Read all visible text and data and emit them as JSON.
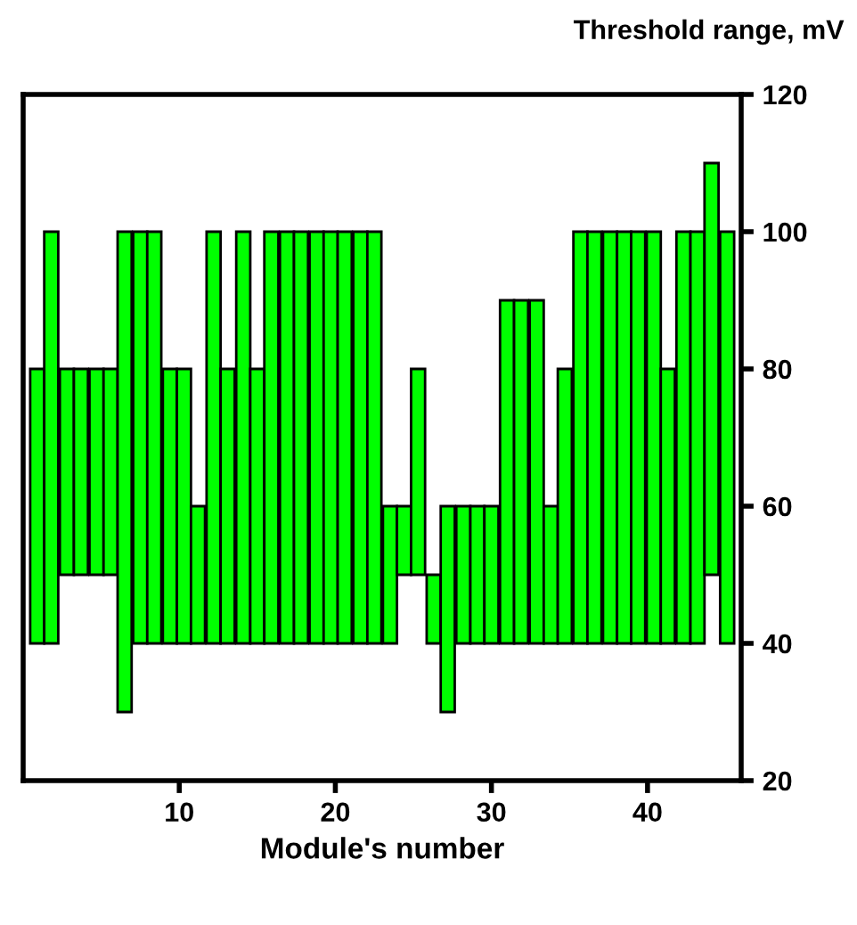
{
  "chart_data": {
    "type": "bar",
    "xlabel": "Module's number",
    "ylabel": "Threshold range, mV",
    "x": [
      0.9,
      1.8,
      2.8,
      3.7,
      4.7,
      5.6,
      6.5,
      7.5,
      8.4,
      9.4,
      10.3,
      11.2,
      12.2,
      13.1,
      14.1,
      15.0,
      15.9,
      16.9,
      17.8,
      18.8,
      19.7,
      20.6,
      21.6,
      22.5,
      23.5,
      24.4,
      25.3,
      26.3,
      27.2,
      28.2,
      29.1,
      30.0,
      31.0,
      31.9,
      32.9,
      33.8,
      34.7,
      35.7,
      36.6,
      37.6,
      38.5,
      39.4,
      40.4,
      41.3,
      42.3,
      43.2,
      44.1,
      45.1
    ],
    "base": [
      40,
      40,
      50,
      50,
      50,
      50,
      30,
      40,
      40,
      40,
      40,
      40,
      40,
      40,
      40,
      40,
      40,
      40,
      40,
      40,
      40,
      40,
      40,
      40,
      40,
      50,
      50,
      40,
      30,
      40,
      40,
      40,
      40,
      40,
      40,
      40,
      40,
      40,
      40,
      40,
      40,
      40,
      40,
      40,
      40,
      40,
      50,
      40
    ],
    "values": [
      40,
      60,
      30,
      30,
      30,
      30,
      70,
      60,
      60,
      40,
      40,
      20,
      60,
      40,
      60,
      40,
      60,
      60,
      60,
      60,
      60,
      60,
      60,
      60,
      20,
      10,
      30,
      10,
      30,
      20,
      20,
      20,
      50,
      50,
      50,
      20,
      40,
      60,
      60,
      60,
      60,
      60,
      60,
      40,
      60,
      60,
      60,
      60
    ],
    "color": "#00ff00",
    "xlim": [
      0,
      46
    ],
    "xticks": [
      10,
      20,
      30,
      40
    ],
    "ylim": [
      20,
      120
    ],
    "yticks": [
      20,
      40,
      60,
      80,
      100,
      120
    ],
    "grid": false
  }
}
